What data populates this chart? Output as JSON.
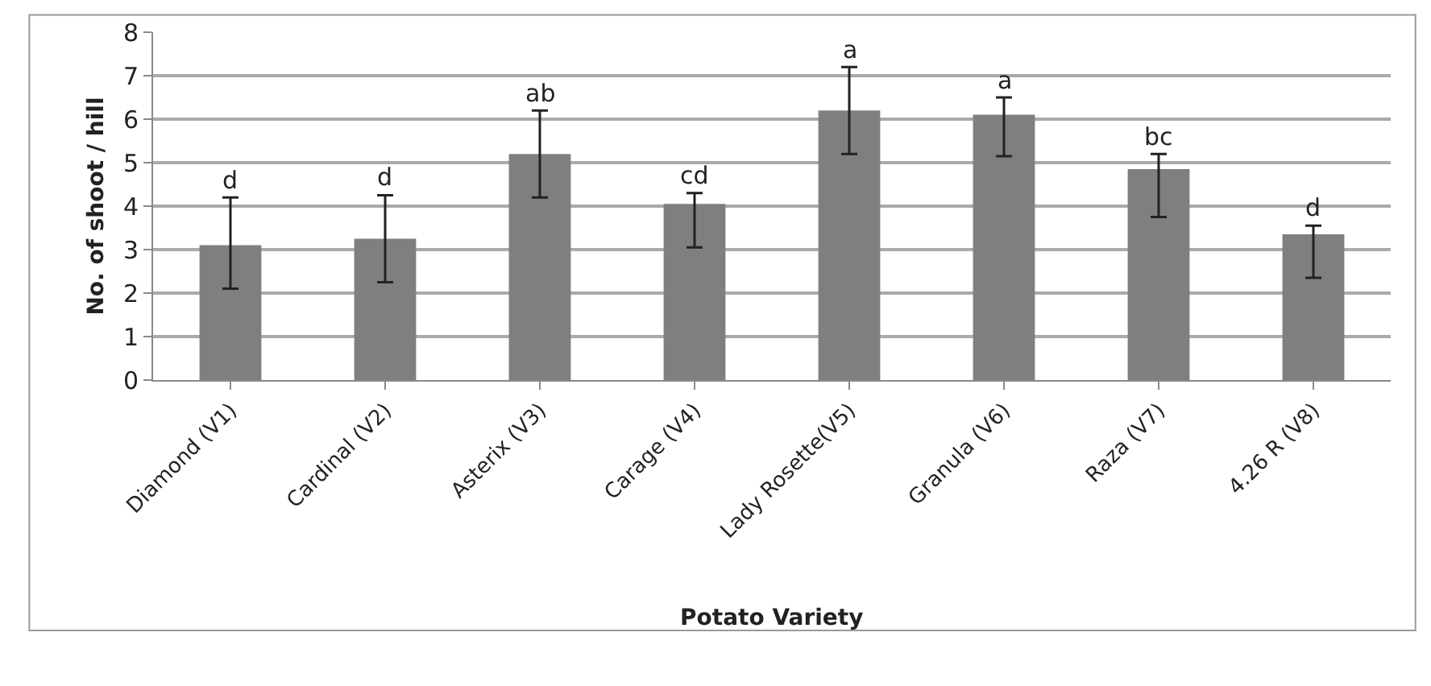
{
  "chart_data": {
    "type": "bar",
    "xlabel": "Potato Variety",
    "ylabel": "No. of shoot / hill",
    "categories": [
      "Diamond (V1)",
      "Cardinal (V2)",
      "Asterix (V3)",
      "Carage (V4)",
      "Lady Rosette(V5)",
      "Granula (V6)",
      "Raza (V7)",
      "4.26 R (V8)"
    ],
    "values": [
      3.1,
      3.25,
      5.2,
      4.05,
      6.2,
      6.1,
      4.85,
      3.35
    ],
    "errors": [
      [
        2.1,
        4.2
      ],
      [
        2.25,
        4.25
      ],
      [
        4.2,
        6.2
      ],
      [
        3.05,
        4.3
      ],
      [
        5.2,
        7.2
      ],
      [
        5.15,
        6.5
      ],
      [
        3.75,
        5.2
      ],
      [
        2.35,
        3.55
      ]
    ],
    "color": "#7f7f7f",
    "ylim": [
      0,
      8
    ],
    "yticks": [
      0,
      1,
      2,
      3,
      4,
      5,
      6,
      7,
      8
    ],
    "grid": "y",
    "legend": false,
    "annotations": [
      {
        "text": "d",
        "x": "Diamond (V1)",
        "y": 4.2
      },
      {
        "text": "d",
        "x": "Cardinal (V2)",
        "y": 4.25
      },
      {
        "text": "ab",
        "x": "Asterix (V3)",
        "y": 6.2
      },
      {
        "text": "cd",
        "x": "Carage (V4)",
        "y": 4.3
      },
      {
        "text": "a",
        "x": "Lady Rosette(V5)",
        "y": 7.2
      },
      {
        "text": "a",
        "x": "Granula (V6)",
        "y": 6.5
      },
      {
        "text": "bc",
        "x": "Raza (V7)",
        "y": 5.2
      },
      {
        "text": "d",
        "x": "4.26 R (V8)",
        "y": 3.55
      }
    ]
  }
}
